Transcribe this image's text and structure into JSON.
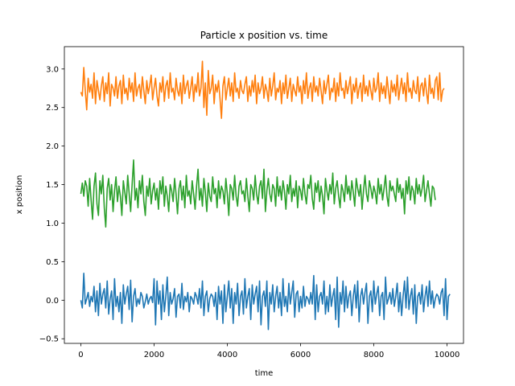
{
  "chart_data": {
    "type": "line",
    "title": "Particle x position vs. time",
    "xlabel": "time",
    "ylabel": "x position",
    "xlim": [
      -450,
      10450
    ],
    "ylim": [
      -0.56,
      3.29
    ],
    "xticks": [
      0,
      2000,
      4000,
      6000,
      8000,
      10000
    ],
    "xtick_labels": [
      "0",
      "2000",
      "4000",
      "6000",
      "8000",
      "10000"
    ],
    "yticks": [
      -0.5,
      0.0,
      0.5,
      1.0,
      1.5,
      2.0,
      2.5,
      3.0
    ],
    "ytick_labels": [
      "−0.5",
      "0.0",
      "0.5",
      "1.0",
      "1.5",
      "2.0",
      "2.5",
      "3.0"
    ],
    "grid": false,
    "x_step": 40,
    "series": [
      {
        "color": "#1f77b4",
        "values": [
          0.0,
          -0.1,
          0.35,
          -0.05,
          0.02,
          0.1,
          -0.08,
          0.05,
          -0.02,
          0.18,
          -0.15,
          0.12,
          -0.2,
          0.22,
          -0.05,
          0.08,
          0.15,
          -0.1,
          0.25,
          -0.18,
          0.02,
          0.12,
          -0.25,
          0.28,
          -0.08,
          0.05,
          -0.15,
          0.1,
          -0.3,
          0.2,
          -0.05,
          0.08,
          0.18,
          -0.12,
          0.26,
          -0.28,
          0.05,
          0.15,
          -0.08,
          0.02,
          -0.05,
          0.1,
          0.05,
          -0.1,
          -0.02,
          0.08,
          -0.05,
          0.02,
          0.05,
          -0.03,
          0.28,
          -0.32,
          0.25,
          -0.05,
          0.12,
          -0.25,
          0.2,
          -0.15,
          0.05,
          0.3,
          -0.2,
          0.1,
          -0.05,
          0.02,
          0.15,
          -0.22,
          0.05,
          0.08,
          -0.1,
          0.22,
          -0.12,
          0.05,
          -0.02,
          0.1,
          -0.15,
          0.05,
          0.02,
          -0.05,
          0.1,
          0.05,
          -0.05,
          0.15,
          -0.1,
          0.25,
          -0.2,
          0.05,
          0.12,
          -0.15,
          0.02,
          0.08,
          0.05,
          -0.08,
          0.1,
          -0.25,
          0.18,
          -0.05,
          0.12,
          -0.3,
          0.2,
          -0.15,
          0.05,
          0.25,
          -0.1,
          0.15,
          -0.3,
          0.1,
          -0.05,
          0.22,
          -0.2,
          0.05,
          0.12,
          -0.18,
          0.28,
          -0.1,
          0.05,
          0.15,
          -0.25,
          0.2,
          -0.05,
          0.08,
          0.18,
          -0.15,
          0.25,
          -0.32,
          0.05,
          0.12,
          -0.08,
          0.25,
          -0.38,
          0.1,
          -0.05,
          0.2,
          -0.15,
          0.05,
          0.18,
          -0.1,
          0.1,
          -0.2,
          0.28,
          -0.08,
          0.05,
          -0.15,
          0.22,
          -0.05,
          0.1,
          0.25,
          -0.22,
          0.08,
          0.12,
          -0.15,
          0.05,
          -0.1,
          0.18,
          -0.08,
          0.05,
          0.02,
          -0.05,
          0.1,
          -0.05,
          0.32,
          -0.25,
          0.2,
          -0.15,
          0.05,
          0.1,
          -0.05,
          0.25,
          -0.18,
          0.05,
          -0.15,
          0.2,
          -0.08,
          0.05,
          0.15,
          -0.25,
          0.3,
          -0.35,
          0.1,
          -0.05,
          0.25,
          -0.15,
          0.18,
          -0.1,
          0.05,
          0.12,
          -0.2,
          0.05,
          0.2,
          -0.1,
          0.25,
          -0.28,
          0.05,
          0.15,
          -0.05,
          0.1,
          0.22,
          -0.3,
          0.05,
          0.12,
          -0.15,
          0.25,
          -0.05,
          0.08,
          0.18,
          -0.2,
          0.05,
          0.1,
          -0.25,
          0.3,
          -0.05,
          0.02,
          0.1,
          -0.05,
          0.15,
          -0.08,
          0.05,
          0.22,
          -0.15,
          0.1,
          -0.2,
          0.05,
          0.25,
          -0.1,
          0.3,
          -0.12,
          0.05,
          0.15,
          -0.18,
          0.2,
          -0.3,
          0.05,
          0.1,
          -0.05,
          0.2,
          -0.15,
          0.05,
          0.18,
          -0.08,
          0.25,
          -0.05,
          0.12,
          -0.1,
          0.02,
          0.08,
          0.05,
          -0.05,
          0.1,
          0.15,
          -0.2,
          0.28,
          -0.25,
          0.05,
          0.08
        ]
      },
      {
        "color": "#ff7f0e",
        "values": [
          2.7,
          2.65,
          3.02,
          2.72,
          2.47,
          2.88,
          2.7,
          2.8,
          2.62,
          2.95,
          2.55,
          2.85,
          2.72,
          2.6,
          2.78,
          2.9,
          2.58,
          2.82,
          2.68,
          2.95,
          2.52,
          2.8,
          2.75,
          2.65,
          2.9,
          2.62,
          2.78,
          2.85,
          2.55,
          2.92,
          2.68,
          2.75,
          2.6,
          2.88,
          2.7,
          2.82,
          2.58,
          2.95,
          2.65,
          2.75,
          2.8,
          2.62,
          2.9,
          2.72,
          2.55,
          2.85,
          2.68,
          2.78,
          2.92,
          2.6,
          2.75,
          2.88,
          2.65,
          2.52,
          2.82,
          2.7,
          2.9,
          2.58,
          2.78,
          2.85,
          2.62,
          2.95,
          2.7,
          2.75,
          2.6,
          2.88,
          2.72,
          2.65,
          2.82,
          2.55,
          2.92,
          2.68,
          2.78,
          2.85,
          2.62,
          2.75,
          2.9,
          2.58,
          2.8,
          2.7,
          2.95,
          2.65,
          2.75,
          3.1,
          2.5,
          2.82,
          2.4,
          2.98,
          2.68,
          2.75,
          2.92,
          2.55,
          2.8,
          2.7,
          2.85,
          2.62,
          2.36,
          2.78,
          2.9,
          2.6,
          2.75,
          2.88,
          2.65,
          2.82,
          2.58,
          2.95,
          2.7,
          2.75,
          2.62,
          2.85,
          2.72,
          2.68,
          2.8,
          2.9,
          2.58,
          2.78,
          2.65,
          2.85,
          2.7,
          2.92,
          2.55,
          2.82,
          2.68,
          2.75,
          2.9,
          2.62,
          2.8,
          2.72,
          2.58,
          2.88,
          2.65,
          2.78,
          2.95,
          2.6,
          2.75,
          2.7,
          2.85,
          2.55,
          2.82,
          2.68,
          2.92,
          2.62,
          2.75,
          2.88,
          2.58,
          2.8,
          2.72,
          2.65,
          2.9,
          2.7,
          2.78,
          2.55,
          2.85,
          2.68,
          2.95,
          2.62,
          2.75,
          2.82,
          2.58,
          2.9,
          2.7,
          2.78,
          2.65,
          2.88,
          2.72,
          2.55,
          2.85,
          2.68,
          2.8,
          2.92,
          2.6,
          2.75,
          2.7,
          2.88,
          2.58,
          2.82,
          2.65,
          2.95,
          2.72,
          2.75,
          2.62,
          2.85,
          2.68,
          2.78,
          2.9,
          2.55,
          2.8,
          2.7,
          2.88,
          2.62,
          2.75,
          2.82,
          2.58,
          2.92,
          2.68,
          2.78,
          2.65,
          2.85,
          2.72,
          2.6,
          2.88,
          2.7,
          2.75,
          2.95,
          2.58,
          2.82,
          2.68,
          2.78,
          2.62,
          2.9,
          2.72,
          2.55,
          2.85,
          2.7,
          2.8,
          2.65,
          2.92,
          2.6,
          2.75,
          2.88,
          2.68,
          2.82,
          2.58,
          2.95,
          2.7,
          2.75,
          2.62,
          2.85,
          2.72,
          2.68,
          2.9,
          2.58,
          2.78,
          2.82,
          2.65,
          2.88,
          2.7,
          2.55,
          2.92,
          2.68,
          2.75,
          2.62,
          2.85,
          2.9,
          2.6,
          2.95,
          2.58,
          2.72,
          2.75
        ]
      },
      {
        "color": "#2ca02c",
        "values": [
          1.38,
          1.52,
          1.35,
          1.55,
          1.48,
          1.22,
          1.58,
          1.3,
          1.05,
          1.48,
          1.65,
          1.25,
          1.1,
          1.55,
          1.38,
          1.62,
          1.2,
          0.95,
          1.45,
          1.58,
          1.3,
          1.5,
          1.15,
          1.42,
          1.6,
          1.28,
          1.48,
          1.35,
          1.1,
          1.55,
          1.4,
          1.25,
          1.62,
          1.38,
          1.15,
          1.5,
          1.82,
          1.3,
          1.45,
          1.2,
          1.55,
          1.38,
          1.62,
          1.28,
          1.1,
          1.48,
          1.35,
          1.58,
          1.25,
          1.42,
          1.52,
          1.3,
          1.45,
          1.18,
          1.55,
          1.38,
          1.6,
          1.22,
          1.48,
          1.35,
          1.15,
          1.5,
          1.42,
          1.28,
          1.58,
          1.38,
          1.12,
          1.45,
          1.55,
          1.3,
          1.48,
          1.2,
          1.62,
          1.35,
          1.42,
          1.25,
          1.55,
          1.38,
          1.18,
          1.48,
          1.7,
          1.3,
          1.45,
          1.22,
          1.58,
          1.4,
          1.15,
          1.52,
          1.35,
          1.28,
          1.6,
          1.38,
          1.45,
          1.2,
          1.55,
          1.32,
          1.48,
          1.42,
          1.25,
          1.58,
          1.38,
          1.1,
          1.5,
          1.45,
          1.3,
          1.62,
          1.35,
          1.22,
          1.48,
          1.55,
          1.38,
          1.42,
          1.28,
          1.58,
          1.35,
          1.15,
          1.5,
          1.45,
          1.3,
          1.62,
          1.38,
          1.25,
          1.48,
          1.55,
          1.32,
          1.7,
          1.15,
          1.42,
          1.58,
          1.38,
          1.28,
          1.5,
          1.45,
          1.22,
          1.6,
          1.35,
          1.48,
          1.3,
          1.55,
          1.42,
          1.18,
          1.5,
          1.38,
          1.62,
          1.28,
          1.45,
          1.35,
          1.55,
          1.2,
          1.48,
          1.42,
          1.3,
          1.58,
          1.38,
          1.25,
          1.5,
          1.45,
          1.62,
          1.32,
          1.18,
          1.52,
          1.4,
          1.55,
          1.28,
          1.48,
          1.35,
          1.12,
          1.58,
          1.42,
          1.3,
          1.5,
          1.38,
          1.65,
          1.25,
          1.45,
          1.55,
          1.35,
          1.2,
          1.5,
          1.42,
          1.28,
          1.62,
          1.38,
          1.48,
          1.3,
          1.55,
          1.4,
          1.22,
          1.58,
          1.45,
          1.35,
          1.5,
          1.18,
          1.42,
          1.62,
          1.38,
          1.28,
          1.55,
          1.45,
          1.32,
          1.48,
          1.4,
          1.25,
          1.58,
          1.38,
          1.5,
          1.3,
          1.45,
          1.62,
          1.35,
          1.22,
          1.55,
          1.42,
          1.48,
          1.38,
          1.28,
          1.58,
          1.4,
          1.5,
          1.32,
          1.45,
          1.12,
          1.55,
          1.38,
          1.6,
          1.3,
          1.48,
          1.42,
          1.25,
          1.58,
          1.38,
          1.5,
          1.35,
          1.45,
          1.62,
          1.28,
          1.42,
          1.55,
          1.38,
          1.22,
          1.48,
          1.45,
          1.3
        ]
      }
    ]
  }
}
